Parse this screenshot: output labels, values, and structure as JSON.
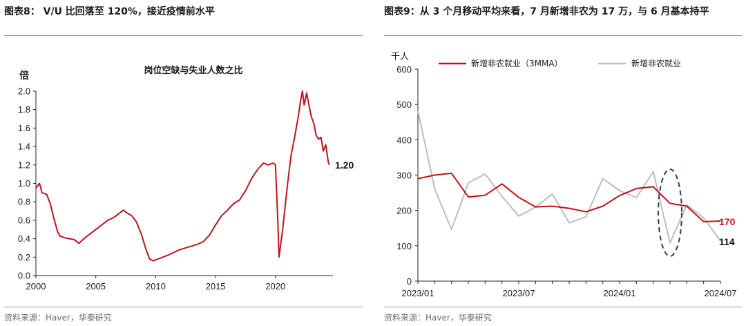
{
  "left": {
    "title": "图表8： V/U 比回落至 120%，接近疫情前水平",
    "source": "资料来源：Haver，华泰研究",
    "chart_data": {
      "type": "line",
      "title": "岗位空缺与失业人数之比",
      "ylabel": "倍",
      "xlim": [
        2000,
        2024.8
      ],
      "ylim": [
        0,
        2.0
      ],
      "xticks": [
        2000,
        2005,
        2010,
        2015,
        2020
      ],
      "yticks": [
        "0.0",
        "0.2",
        "0.4",
        "0.6",
        "0.8",
        "1.0",
        "1.2",
        "1.4",
        "1.6",
        "1.8",
        "2.0"
      ],
      "series": [
        {
          "color": "#c0121c",
          "x": [
            2000.0,
            2000.3,
            2000.5,
            2000.9,
            2001.2,
            2001.5,
            2001.8,
            2002.0,
            2002.4,
            2002.8,
            2003.2,
            2003.6,
            2004.0,
            2004.5,
            2005.0,
            2005.5,
            2006.0,
            2006.5,
            2007.0,
            2007.3,
            2007.6,
            2008.0,
            2008.4,
            2008.8,
            2009.2,
            2009.5,
            2009.8,
            2010.2,
            2010.6,
            2011.0,
            2011.5,
            2012.0,
            2012.5,
            2013.0,
            2013.5,
            2014.0,
            2014.5,
            2015.0,
            2015.5,
            2016.0,
            2016.5,
            2017.0,
            2017.5,
            2018.0,
            2018.5,
            2019.0,
            2019.4,
            2019.8,
            2020.0,
            2020.2,
            2020.3,
            2020.6,
            2021.0,
            2021.3,
            2021.6,
            2021.9,
            2022.1,
            2022.25,
            2022.4,
            2022.6,
            2022.8,
            2023.0,
            2023.2,
            2023.4,
            2023.6,
            2023.8,
            2024.0,
            2024.2,
            2024.4,
            2024.5
          ],
          "y": [
            0.95,
            1.0,
            0.9,
            0.88,
            0.78,
            0.62,
            0.48,
            0.43,
            0.41,
            0.4,
            0.39,
            0.35,
            0.4,
            0.45,
            0.5,
            0.55,
            0.6,
            0.63,
            0.68,
            0.71,
            0.68,
            0.65,
            0.58,
            0.45,
            0.28,
            0.18,
            0.16,
            0.18,
            0.2,
            0.22,
            0.25,
            0.28,
            0.3,
            0.32,
            0.34,
            0.37,
            0.44,
            0.55,
            0.65,
            0.71,
            0.78,
            0.82,
            0.92,
            1.05,
            1.15,
            1.22,
            1.2,
            1.22,
            1.2,
            0.6,
            0.2,
            0.5,
            0.98,
            1.3,
            1.5,
            1.72,
            1.9,
            2.0,
            1.85,
            1.98,
            1.85,
            1.72,
            1.65,
            1.52,
            1.48,
            1.5,
            1.35,
            1.42,
            1.24,
            1.2
          ]
        }
      ],
      "annotations": [
        "1.20"
      ]
    }
  },
  "right": {
    "title": "图表9：从 3 个月移动平均来看，7 月新增非农为 17 万，与 6 月基本持平",
    "source": "资料来源：Haver，华泰研究",
    "chart_data": {
      "type": "line",
      "ylabel": "千人",
      "ylim": [
        0,
        600
      ],
      "yticks": [
        "0",
        "100",
        "200",
        "300",
        "400",
        "500",
        "600"
      ],
      "x": [
        "2023/01",
        "2023/02",
        "2023/03",
        "2023/04",
        "2023/05",
        "2023/06",
        "2023/07",
        "2023/08",
        "2023/09",
        "2023/10",
        "2023/11",
        "2023/12",
        "2024/01",
        "2024/02",
        "2024/03",
        "2024/04",
        "2024/05",
        "2024/06",
        "2024/07"
      ],
      "xtick_labels": [
        "2023/01",
        "2023/07",
        "2024/01",
        "2024/07"
      ],
      "legend_position": "top",
      "series": [
        {
          "name": "新增非农就业（3MMA）",
          "color": "#c0121c",
          "values": [
            290,
            300,
            305,
            238,
            243,
            275,
            237,
            210,
            212,
            206,
            196,
            212,
            242,
            262,
            267,
            220,
            212,
            168,
            170
          ]
        },
        {
          "name": "新增非农就业",
          "color": "#bdbdbd",
          "values": [
            482,
            261,
            146,
            278,
            303,
            240,
            184,
            210,
            246,
            165,
            182,
            290,
            256,
            236,
            310,
            108,
            216,
            179,
            114
          ]
        }
      ],
      "annotations": [
        "170",
        "114"
      ]
    }
  }
}
